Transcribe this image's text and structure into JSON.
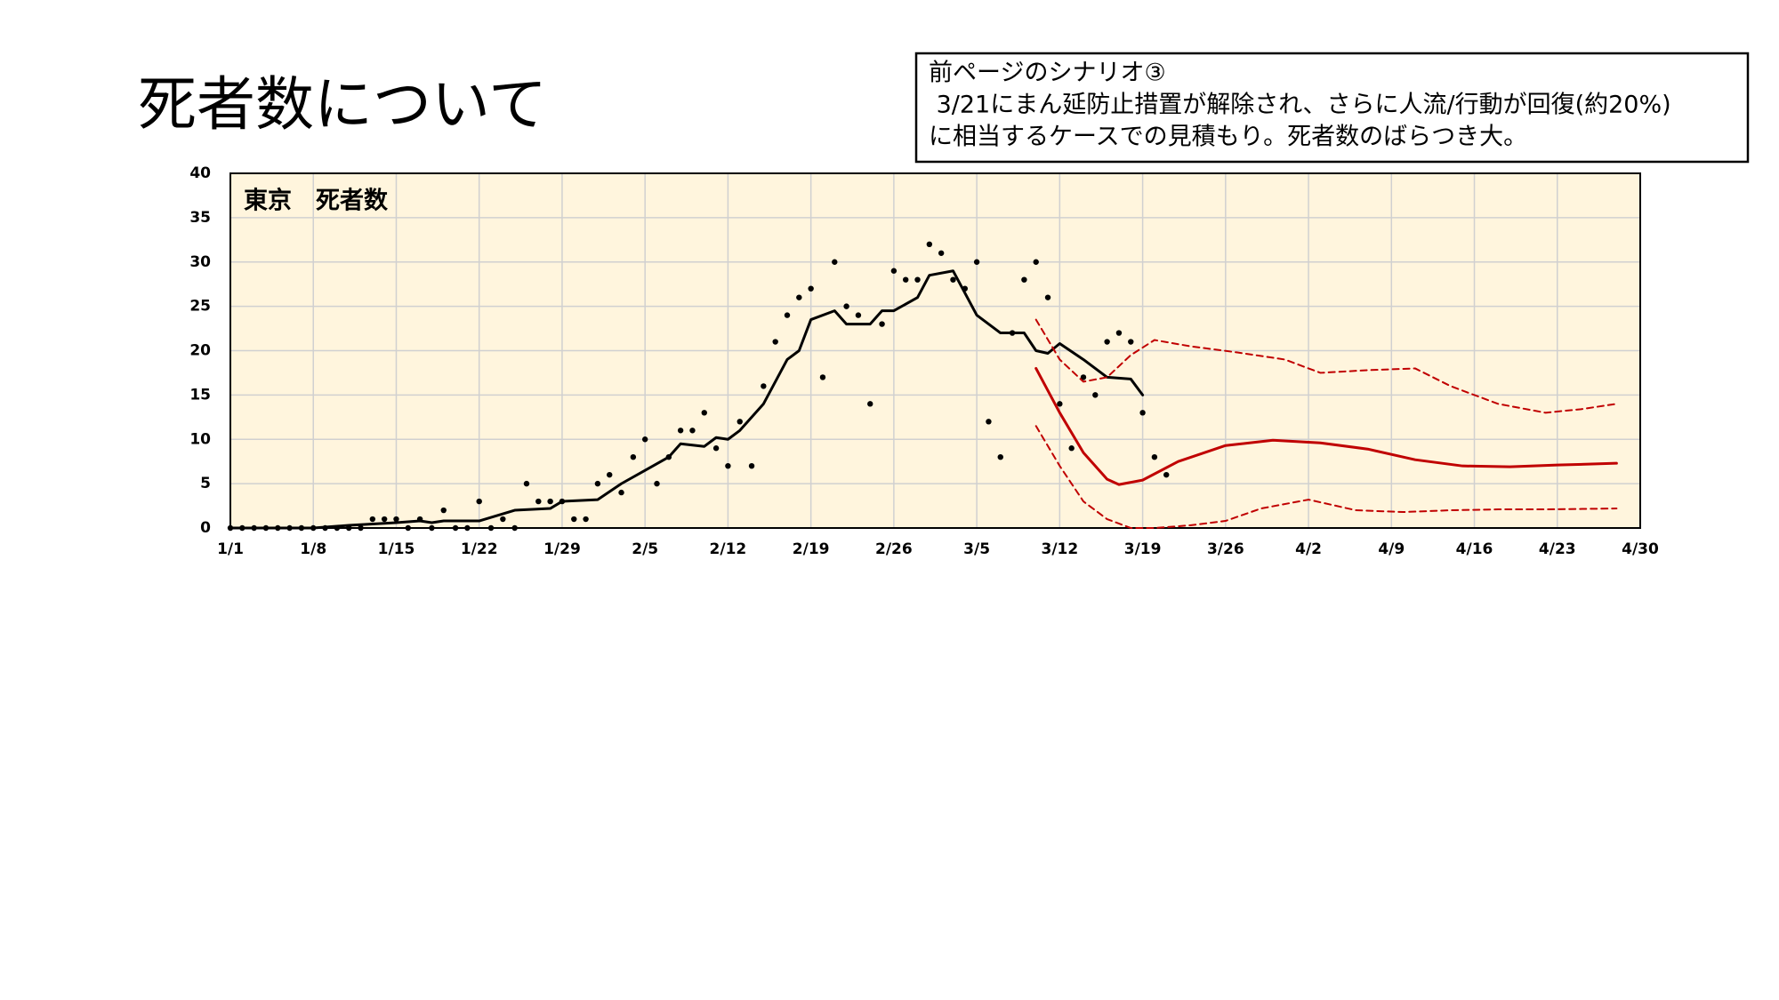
{
  "slide": {
    "title": "死者数について",
    "note": [
      "前ページのシナリオ③",
      " 3/21にまん延防止措置が解除され、さらに人流/行動が回復(約20%)",
      "に相当するケースでの見積もり。死者数のばらつき大。"
    ]
  },
  "chart_data": {
    "type": "line",
    "title": "東京　死者数",
    "xlim": [
      "1/1",
      "4/30"
    ],
    "xticks": [
      "1/1",
      "1/8",
      "1/15",
      "1/22",
      "1/29",
      "2/5",
      "2/12",
      "2/19",
      "2/26",
      "3/5",
      "3/12",
      "3/19",
      "3/26",
      "4/2",
      "4/9",
      "4/16",
      "4/23",
      "4/30"
    ],
    "ylim": [
      0,
      40
    ],
    "yticks": [
      0,
      5,
      10,
      15,
      20,
      25,
      30,
      35,
      40
    ],
    "grid": true,
    "background": "#fff5dd",
    "series": [
      {
        "style": "scatter",
        "color": "#000000",
        "x": [
          "1/1",
          "1/2",
          "1/3",
          "1/4",
          "1/5",
          "1/6",
          "1/7",
          "1/8",
          "1/9",
          "1/10",
          "1/11",
          "1/12",
          "1/13",
          "1/14",
          "1/15",
          "1/16",
          "1/17",
          "1/18",
          "1/19",
          "1/20",
          "1/21",
          "1/22",
          "1/23",
          "1/24",
          "1/25",
          "1/26",
          "1/27",
          "1/28",
          "1/29",
          "1/30",
          "1/31",
          "2/1",
          "2/2",
          "2/3",
          "2/4",
          "2/5",
          "2/6",
          "2/7",
          "2/8",
          "2/9",
          "2/10",
          "2/11",
          "2/12",
          "2/13",
          "2/14",
          "2/15",
          "2/16",
          "2/17",
          "2/18",
          "2/19",
          "2/20",
          "2/21",
          "2/22",
          "2/23",
          "2/24",
          "2/25",
          "2/26",
          "2/27",
          "2/28",
          "3/1",
          "3/2",
          "3/3",
          "3/4",
          "3/5",
          "3/6",
          "3/7",
          "3/8",
          "3/9",
          "3/10",
          "3/11",
          "3/12",
          "3/13",
          "3/14",
          "3/15",
          "3/16",
          "3/17",
          "3/18",
          "3/19",
          "3/20",
          "3/21"
        ],
        "values": [
          0,
          0,
          0,
          0,
          0,
          0,
          0,
          0,
          0,
          0,
          0,
          0,
          1,
          1,
          1,
          0,
          1,
          0,
          2,
          0,
          0,
          3,
          0,
          1,
          0,
          5,
          3,
          3,
          3,
          1,
          1,
          5,
          6,
          4,
          8,
          10,
          5,
          8,
          11,
          11,
          13,
          9,
          7,
          12,
          7,
          16,
          21,
          24,
          26,
          27,
          17,
          30,
          25,
          24,
          14,
          23,
          29,
          28,
          28,
          32,
          31,
          28,
          27,
          30,
          12,
          8,
          22,
          28,
          30,
          26,
          14,
          9,
          17,
          15,
          21,
          22,
          21,
          13,
          8,
          6
        ]
      },
      {
        "style": "solid",
        "color": "#000000",
        "x": [
          "1/1",
          "1/8",
          "1/11",
          "1/15",
          "1/17",
          "1/18",
          "1/19",
          "1/22",
          "1/25",
          "1/28",
          "1/29",
          "2/1",
          "2/3",
          "2/5",
          "2/7",
          "2/8",
          "2/10",
          "2/11",
          "2/12",
          "2/13",
          "2/15",
          "2/17",
          "2/18",
          "2/19",
          "2/21",
          "2/22",
          "2/24",
          "2/25",
          "2/26",
          "2/28",
          "3/1",
          "3/3",
          "3/5",
          "3/7",
          "3/9",
          "3/10",
          "3/11",
          "3/12",
          "3/14",
          "3/16",
          "3/18",
          "3/19"
        ],
        "values": [
          0,
          0,
          0.3,
          0.6,
          0.8,
          0.6,
          0.8,
          0.8,
          2,
          2.2,
          3,
          3.2,
          5,
          6.5,
          8,
          9.5,
          9.2,
          10.2,
          10,
          11,
          14,
          19,
          20,
          23.5,
          24.5,
          23,
          23,
          24.5,
          24.5,
          26,
          28.5,
          29,
          24,
          22,
          22,
          20,
          19.7,
          20.8,
          19,
          17,
          16.8,
          15
        ]
      },
      {
        "style": "solid",
        "color": "#c00000",
        "x": [
          "3/10",
          "3/12",
          "3/14",
          "3/16",
          "3/17",
          "3/19",
          "3/22",
          "3/26",
          "3/30",
          "4/3",
          "4/7",
          "4/11",
          "4/15",
          "4/19",
          "4/23",
          "4/28"
        ],
        "values": [
          18,
          13,
          8.5,
          5.5,
          4.9,
          5.4,
          7.5,
          9.3,
          9.9,
          9.6,
          8.9,
          7.7,
          7,
          6.9,
          7.1,
          7.3
        ]
      },
      {
        "style": "dashed",
        "color": "#c00000",
        "x": [
          "3/10",
          "3/12",
          "3/14",
          "3/16",
          "3/18",
          "3/20",
          "3/23",
          "3/27",
          "3/31",
          "4/3",
          "4/7",
          "4/11",
          "4/14",
          "4/18",
          "4/22",
          "4/25",
          "4/28"
        ],
        "values": [
          23.5,
          19,
          16.5,
          17,
          19.5,
          21.2,
          20.5,
          19.8,
          19,
          17.5,
          17.8,
          18,
          16,
          14,
          13,
          13.4,
          14
        ]
      },
      {
        "style": "dashed",
        "color": "#c00000",
        "x": [
          "3/10",
          "3/12",
          "3/14",
          "3/16",
          "3/18",
          "3/20",
          "3/23",
          "3/26",
          "3/29",
          "4/2",
          "4/6",
          "4/10",
          "4/14",
          "4/18",
          "4/22",
          "4/28"
        ],
        "values": [
          11.5,
          7,
          3,
          1,
          0,
          0,
          0.3,
          0.8,
          2.2,
          3.2,
          2,
          1.8,
          2,
          2.1,
          2.1,
          2.2
        ]
      }
    ]
  }
}
